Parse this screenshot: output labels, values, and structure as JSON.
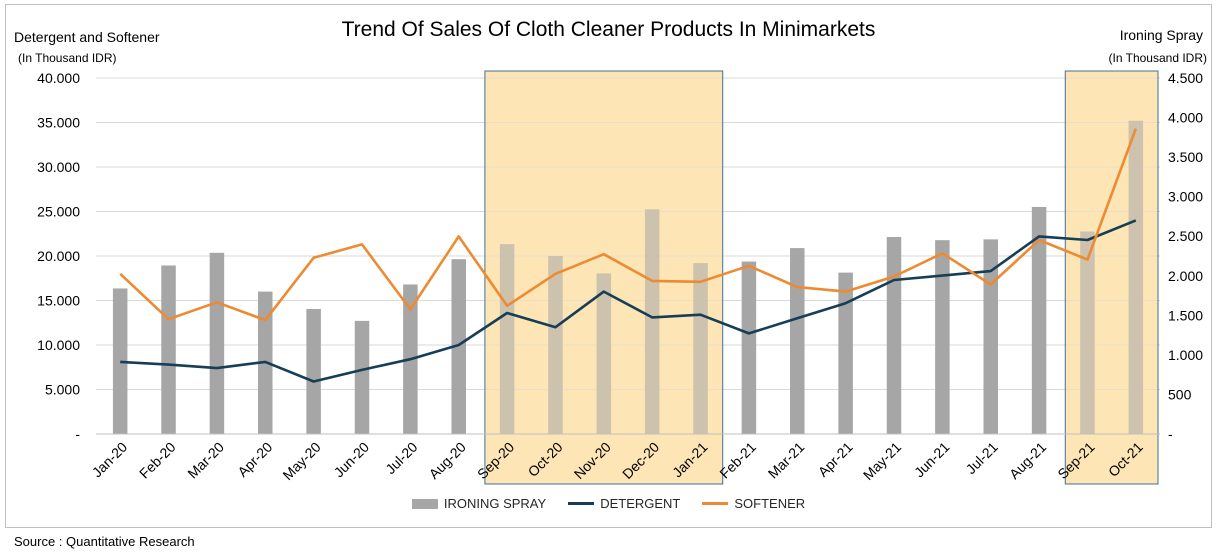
{
  "colors": {
    "ironing_bar": "#a6a6a6",
    "detergent_line": "#163e57",
    "softener_line": "#ee8a32",
    "highlight_fill": "#fde5b5",
    "highlight_border": "#41719c",
    "gridline": "#d9d9d9"
  },
  "chart_data": {
    "type": "bar+line",
    "title": "Trend Of Sales Of Cloth Cleaner Products In Minimarkets",
    "left_axis": {
      "title": "Detergent and Softener",
      "unit": "(In Thousand IDR)",
      "range": [
        0,
        40000
      ],
      "ticks": [
        "-",
        "5.000",
        "10.000",
        "15.000",
        "20.000",
        "25.000",
        "30.000",
        "35.000",
        "40.000"
      ]
    },
    "right_axis": {
      "title": "Ironing Spray",
      "unit": "(In Thousand IDR)",
      "range": [
        0,
        4500
      ],
      "ticks": [
        "-",
        "500",
        "1.000",
        "1.500",
        "2.000",
        "2.500",
        "3.000",
        "3.500",
        "4.000",
        "4.500"
      ]
    },
    "categories": [
      "Jan-20",
      "Feb-20",
      "Mar-20",
      "Apr-20",
      "May-20",
      "Jun-20",
      "Jul-20",
      "Aug-20",
      "Sep-20",
      "Oct-20",
      "Nov-20",
      "Dec-20",
      "Jan-21",
      "Feb-21",
      "Mar-21",
      "Apr-21",
      "May-21",
      "Jun-21",
      "Jul-21",
      "Aug-21",
      "Sep-21",
      "Oct-21"
    ],
    "series": [
      {
        "name": "IRONING SPRAY",
        "type": "bar",
        "axis": "right",
        "values": [
          1840,
          2130,
          2290,
          1800,
          1580,
          1430,
          1890,
          2210,
          2400,
          2250,
          2030,
          2840,
          2160,
          2180,
          2350,
          2040,
          2490,
          2450,
          2460,
          2870,
          2560,
          3960
        ]
      },
      {
        "name": "DETERGENT",
        "type": "line",
        "axis": "left",
        "values": [
          8100,
          7800,
          7400,
          8100,
          5900,
          7200,
          8400,
          10000,
          13600,
          12000,
          16000,
          13100,
          13400,
          11300,
          13000,
          14700,
          17300,
          17800,
          18300,
          22200,
          21800,
          24000
        ]
      },
      {
        "name": "SOFTENER",
        "type": "line",
        "axis": "left",
        "values": [
          18000,
          12900,
          14800,
          12800,
          19800,
          21300,
          14000,
          22200,
          14400,
          18000,
          20200,
          17200,
          17100,
          18900,
          16500,
          16000,
          17700,
          20300,
          16800,
          21800,
          19600,
          34300
        ]
      }
    ],
    "highlight_ranges": [
      [
        "Sep-20",
        "Jan-21"
      ],
      [
        "Sep-21",
        "Oct-21"
      ]
    ],
    "grid": "horizontal",
    "legend_position": "bottom"
  },
  "source": "Source : Quantitative Research"
}
